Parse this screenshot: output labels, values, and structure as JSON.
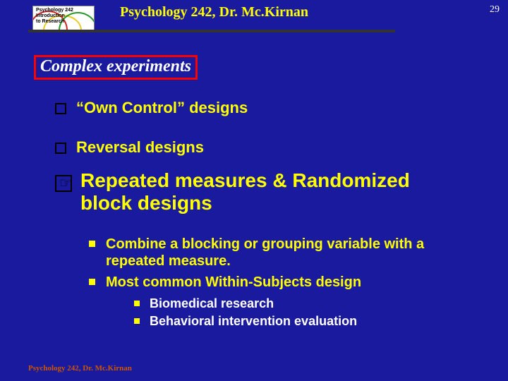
{
  "colors": {
    "background": "#1a1a9e",
    "text_yellow": "#ffff00",
    "text_white": "#ffffff",
    "box_red": "#ff0000",
    "footer_orange": "#cc5500",
    "black": "#000000"
  },
  "page_number": "29",
  "logo": {
    "line1": "Psychology 242",
    "line2": "Introduction",
    "line3": "to Research"
  },
  "header_title": "Psychology 242, Dr. Mc.Kirnan",
  "section_title": "Complex experiments",
  "bullets": {
    "b1": "“Own Control” designs",
    "b2": "Reversal designs",
    "b3": "Repeated measures & Randomized block designs"
  },
  "sub_bullets": {
    "s1": "Combine a blocking or grouping variable with a repeated measure.",
    "s2": "Most common Within-Subjects design"
  },
  "subsub_bullets": {
    "ss1": "Biomedical research",
    "ss2": "Behavioral intervention evaluation"
  },
  "footer": "Psychology 242, Dr. Mc.Kirnan"
}
